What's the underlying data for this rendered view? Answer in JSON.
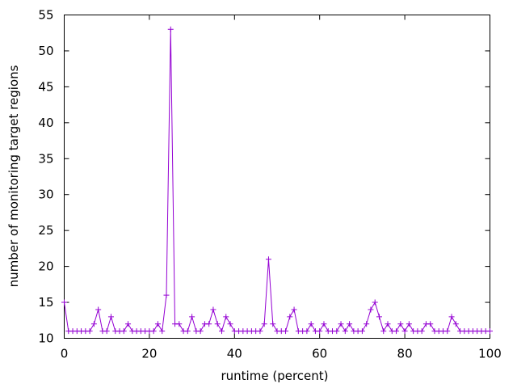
{
  "chart_data": {
    "type": "line",
    "title": "",
    "xlabel": "runtime (percent)",
    "ylabel": "number of monitoring target regions",
    "xlim": [
      0,
      100
    ],
    "ylim": [
      10,
      55
    ],
    "xticks": [
      0,
      20,
      40,
      60,
      80,
      100
    ],
    "yticks": [
      10,
      15,
      20,
      25,
      30,
      35,
      40,
      45,
      50,
      55
    ],
    "grid": false,
    "legend": "none",
    "marker": "plus",
    "series": [
      {
        "color": "#9400d3",
        "x": [
          0,
          1,
          2,
          3,
          4,
          5,
          6,
          7,
          8,
          9,
          10,
          11,
          12,
          13,
          14,
          15,
          16,
          17,
          18,
          19,
          20,
          21,
          22,
          23,
          24,
          25,
          26,
          27,
          28,
          29,
          30,
          31,
          32,
          33,
          34,
          35,
          36,
          37,
          38,
          39,
          40,
          41,
          42,
          43,
          44,
          45,
          46,
          47,
          48,
          49,
          50,
          51,
          52,
          53,
          54,
          55,
          56,
          57,
          58,
          59,
          60,
          61,
          62,
          63,
          64,
          65,
          66,
          67,
          68,
          69,
          70,
          71,
          72,
          73,
          74,
          75,
          76,
          77,
          78,
          79,
          80,
          81,
          82,
          83,
          84,
          85,
          86,
          87,
          88,
          89,
          90,
          91,
          92,
          93,
          94,
          95,
          96,
          97,
          98,
          99,
          100
        ],
        "y": [
          15,
          11,
          11,
          11,
          11,
          11,
          11,
          12,
          14,
          11,
          11,
          13,
          11,
          11,
          11,
          12,
          11,
          11,
          11,
          11,
          11,
          11,
          12,
          11,
          16,
          53,
          12,
          12,
          11,
          11,
          13,
          11,
          11,
          12,
          12,
          14,
          12,
          11,
          13,
          12,
          11,
          11,
          11,
          11,
          11,
          11,
          11,
          12,
          21,
          12,
          11,
          11,
          11,
          13,
          14,
          11,
          11,
          11,
          12,
          11,
          11,
          12,
          11,
          11,
          11,
          12,
          11,
          12,
          11,
          11,
          11,
          12,
          14,
          15,
          13,
          11,
          12,
          11,
          11,
          12,
          11,
          12,
          11,
          11,
          11,
          12,
          12,
          11,
          11,
          11,
          11,
          13,
          12,
          11,
          11,
          11,
          11,
          11,
          11,
          11,
          11
        ]
      }
    ]
  }
}
